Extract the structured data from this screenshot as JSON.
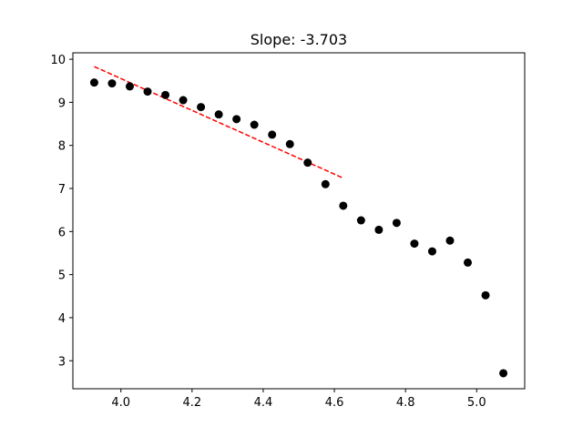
{
  "chart_data": {
    "type": "scatter",
    "title": "Slope: -3.703",
    "xlabel": "",
    "ylabel": "",
    "xlim": [
      3.865,
      5.135
    ],
    "ylim": [
      2.35,
      10.15
    ],
    "xticks": [
      4.0,
      4.2,
      4.4,
      4.6,
      4.8,
      5.0
    ],
    "xtick_labels": [
      "4.0",
      "4.2",
      "4.4",
      "4.6",
      "4.8",
      "5.0"
    ],
    "yticks": [
      3,
      4,
      5,
      6,
      7,
      8,
      9,
      10
    ],
    "ytick_labels": [
      "3",
      "4",
      "5",
      "6",
      "7",
      "8",
      "9",
      "10"
    ],
    "grid": false,
    "series": [
      {
        "marker_color": "#000000",
        "x": [
          3.925,
          3.975,
          4.025,
          4.075,
          4.125,
          4.175,
          4.225,
          4.275,
          4.325,
          4.375,
          4.425,
          4.475,
          4.525,
          4.575,
          4.625,
          4.675,
          4.725,
          4.775,
          4.825,
          4.875,
          4.925,
          4.975,
          5.025,
          5.075
        ],
        "y": [
          9.46,
          9.44,
          9.37,
          9.25,
          9.17,
          9.05,
          8.89,
          8.72,
          8.61,
          8.48,
          8.25,
          8.03,
          7.6,
          7.1,
          6.6,
          6.26,
          6.04,
          6.2,
          5.72,
          5.54,
          5.79,
          5.28,
          4.52,
          2.71
        ]
      }
    ],
    "fit_line": {
      "color": "#ff0000",
      "style": "dashed",
      "x": [
        3.925,
        4.625
      ],
      "y": [
        9.83,
        7.24
      ]
    }
  }
}
